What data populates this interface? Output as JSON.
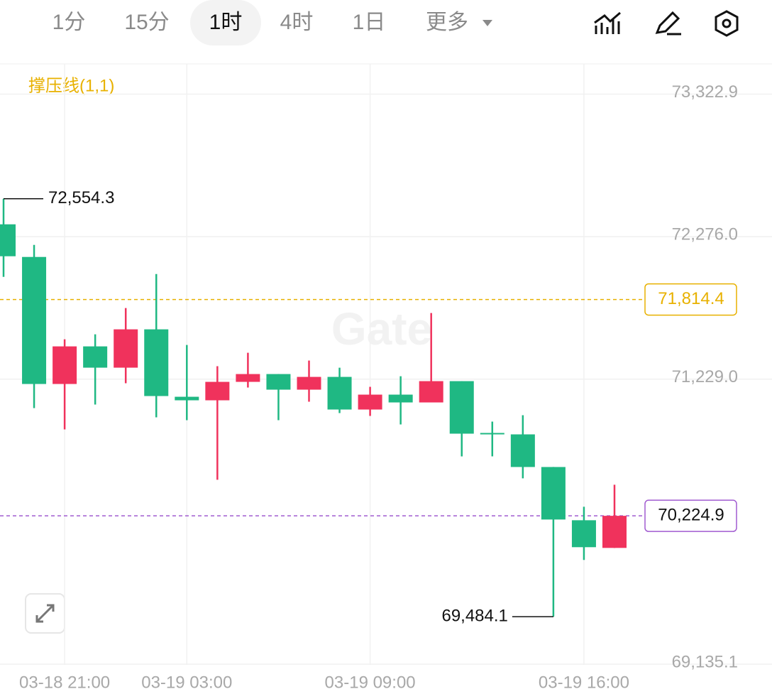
{
  "toolbar": {
    "tabs": [
      "1分",
      "15分",
      "1时",
      "4时",
      "1日",
      "更多"
    ],
    "active": "1时"
  },
  "chart_data": {
    "type": "candlestick",
    "indicator": "撑压线(1,1)",
    "watermark": "Gate",
    "categories": [
      null,
      null,
      "03-18 21:00",
      null,
      null,
      null,
      "03-19 03:00",
      null,
      null,
      null,
      null,
      null,
      "03-19 09:00",
      null,
      null,
      null,
      null,
      null,
      null,
      "03-19 16:00",
      null
    ],
    "open": [
      72366.6,
      72126.8,
      71193.5,
      71469.8,
      71313.4,
      71595.0,
      71099.6,
      71073.6,
      71209.1,
      71266.5,
      71151.8,
      71245.6,
      71005.8,
      71115.3,
      71057.9,
      71214.4,
      70833.7,
      70823.3,
      70583.5,
      70192.4,
      69989.1
    ],
    "high": [
      72554.3,
      72215.4,
      71522.0,
      71558.5,
      71751.4,
      72001.6,
      71480.3,
      71323.9,
      71422.9,
      71266.5,
      71365.6,
      71313.4,
      71172.6,
      71250.8,
      71714.9,
      71214.4,
      70917.2,
      70964.1,
      70583.5,
      70291.5,
      70453.1
    ],
    "low": [
      71980.8,
      71016.2,
      70859.8,
      71042.3,
      71198.7,
      70948.4,
      70927.6,
      70489.6,
      71167.4,
      70927.6,
      71063.2,
      70979.7,
      70958.9,
      70896.3,
      71057.9,
      70661.7,
      70661.7,
      70500.1,
      69484.1,
      69900.5,
      69989.1
    ],
    "close": [
      72132.0,
      71193.5,
      71469.8,
      71313.4,
      71595.0,
      71104.9,
      71073.6,
      71209.1,
      71266.5,
      71151.8,
      71245.6,
      71005.8,
      71115.3,
      71057.9,
      71214.4,
      70828.5,
      70823.3,
      70583.5,
      70197.7,
      69994.4,
      70224.9
    ],
    "up_color": "#f0325c",
    "down_color": "#1fb883",
    "ylim": [
      69129.6,
      73544.9
    ],
    "yticks": [
      {
        "value": 69135.1,
        "label": "69,135.1"
      },
      {
        "value": 71229.0,
        "label": "71,229.0"
      },
      {
        "value": 72276.0,
        "label": "72,276.0"
      },
      {
        "value": 73322.9,
        "label": "73,322.9"
      }
    ],
    "grid": true,
    "annotations": [
      {
        "value": 72554.3,
        "label": "72,554.3"
      },
      {
        "value": 69484.1,
        "label": "69,484.1"
      }
    ],
    "price_lines": [
      {
        "value": 71814.4,
        "label": "71,814.4",
        "color": "#e8b100"
      },
      {
        "value": 70224.9,
        "label": "70,224.9",
        "color": "#a15bd0"
      }
    ]
  }
}
